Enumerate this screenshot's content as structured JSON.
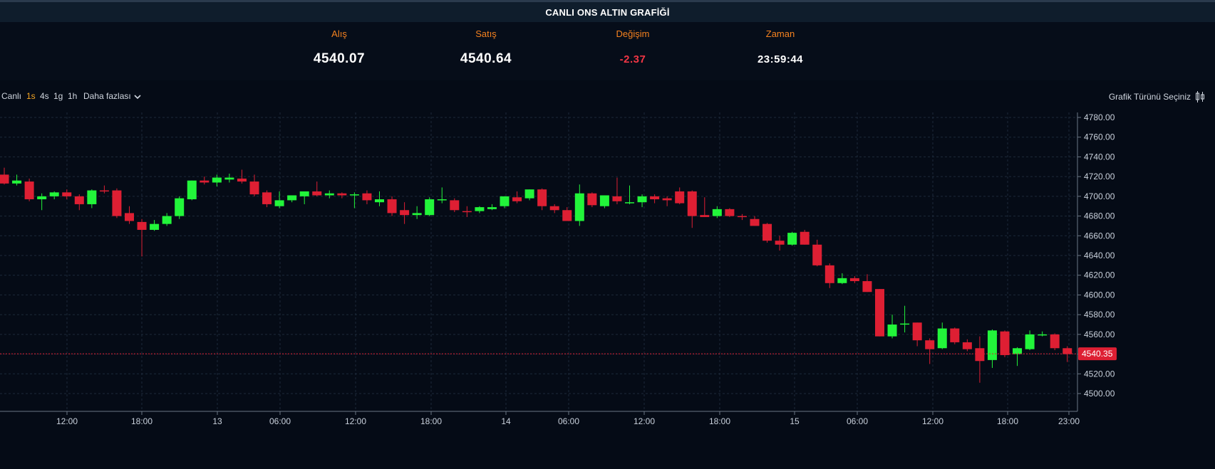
{
  "header": {
    "title": "CANLI ONS ALTIN GRAFİĞİ"
  },
  "stats": {
    "bid_label": "Alış",
    "bid_value": "4540.07",
    "ask_label": "Satış",
    "ask_value": "4540.64",
    "change_label": "Değişim",
    "change_value": "-2.37",
    "time_label": "Zaman",
    "time_value": "23:59:44"
  },
  "toolbar": {
    "live_label": "Canlı",
    "intervals": [
      "1s",
      "4s",
      "1g",
      "1h"
    ],
    "active_interval": "1s",
    "more_label": "Daha fazlası",
    "chart_type_label": "Grafik Türünü Seçiniz"
  },
  "colors": {
    "up": "#22f53a",
    "down": "#de1f33",
    "accent": "#f5821f",
    "background": "#050b16"
  },
  "chart_data": {
    "type": "candlestick",
    "interval_hours": 2,
    "x_start": "12 08:00",
    "y_ticks": [
      4500,
      4520,
      4540,
      4560,
      4580,
      4600,
      4620,
      4640,
      4660,
      4680,
      4700,
      4720,
      4740,
      4760,
      4780
    ],
    "y_tick_labels": [
      "4500.00",
      "4520.00",
      "4540.00",
      "4560.00",
      "4580.00",
      "4600.00",
      "4620.00",
      "4640.00",
      "4660.00",
      "4680.00",
      "4700.00",
      "4720.00",
      "4740.00",
      "4760.00",
      "4780.00"
    ],
    "ylim": [
      4484,
      4791
    ],
    "x_tick_labels": [
      "12:00",
      "18:00",
      "13",
      "06:00",
      "12:00",
      "18:00",
      "14",
      "06:00",
      "12:00",
      "18:00",
      "15",
      "06:00",
      "12:00",
      "18:00",
      "23:00"
    ],
    "current_price": 4540.35,
    "current_price_label": "4540.35",
    "candles": [
      {
        "o": 4722,
        "h": 4729,
        "l": 4712,
        "c": 4713
      },
      {
        "o": 4713,
        "h": 4722,
        "l": 4711,
        "c": 4716
      },
      {
        "o": 4715,
        "h": 4718,
        "l": 4695,
        "c": 4697
      },
      {
        "o": 4697,
        "h": 4703,
        "l": 4686,
        "c": 4700
      },
      {
        "o": 4700,
        "h": 4705,
        "l": 4697,
        "c": 4704
      },
      {
        "o": 4704,
        "h": 4707,
        "l": 4697,
        "c": 4700
      },
      {
        "o": 4700,
        "h": 4702,
        "l": 4686,
        "c": 4692
      },
      {
        "o": 4692,
        "h": 4707,
        "l": 4688,
        "c": 4706
      },
      {
        "o": 4706,
        "h": 4711,
        "l": 4703,
        "c": 4705
      },
      {
        "o": 4706,
        "h": 4708,
        "l": 4678,
        "c": 4680
      },
      {
        "o": 4683,
        "h": 4690,
        "l": 4672,
        "c": 4675
      },
      {
        "o": 4674,
        "h": 4677,
        "l": 4639,
        "c": 4666
      },
      {
        "o": 4666,
        "h": 4676,
        "l": 4665,
        "c": 4672
      },
      {
        "o": 4672,
        "h": 4683,
        "l": 4670,
        "c": 4680
      },
      {
        "o": 4680,
        "h": 4700,
        "l": 4677,
        "c": 4698
      },
      {
        "o": 4697,
        "h": 4716,
        "l": 4696,
        "c": 4716
      },
      {
        "o": 4716,
        "h": 4720,
        "l": 4712,
        "c": 4714
      },
      {
        "o": 4714,
        "h": 4722,
        "l": 4710,
        "c": 4719
      },
      {
        "o": 4717,
        "h": 4723,
        "l": 4714,
        "c": 4719
      },
      {
        "o": 4718,
        "h": 4727,
        "l": 4713,
        "c": 4715
      },
      {
        "o": 4715,
        "h": 4722,
        "l": 4700,
        "c": 4702
      },
      {
        "o": 4704,
        "h": 4706,
        "l": 4689,
        "c": 4692
      },
      {
        "o": 4690,
        "h": 4705,
        "l": 4688,
        "c": 4696
      },
      {
        "o": 4696,
        "h": 4701,
        "l": 4694,
        "c": 4701
      },
      {
        "o": 4700,
        "h": 4702,
        "l": 4692,
        "c": 4705
      },
      {
        "o": 4705,
        "h": 4715,
        "l": 4700,
        "c": 4701
      },
      {
        "o": 4701,
        "h": 4706,
        "l": 4698,
        "c": 4703
      },
      {
        "o": 4703,
        "h": 4704,
        "l": 4698,
        "c": 4701
      },
      {
        "o": 4702,
        "h": 4704,
        "l": 4688,
        "c": 4702
      },
      {
        "o": 4703,
        "h": 4706,
        "l": 4692,
        "c": 4696
      },
      {
        "o": 4694,
        "h": 4705,
        "l": 4690,
        "c": 4697
      },
      {
        "o": 4697,
        "h": 4700,
        "l": 4680,
        "c": 4683
      },
      {
        "o": 4686,
        "h": 4694,
        "l": 4672,
        "c": 4681
      },
      {
        "o": 4681,
        "h": 4690,
        "l": 4677,
        "c": 4683
      },
      {
        "o": 4681,
        "h": 4699,
        "l": 4680,
        "c": 4697
      },
      {
        "o": 4697,
        "h": 4709,
        "l": 4693,
        "c": 4697
      },
      {
        "o": 4696,
        "h": 4698,
        "l": 4684,
        "c": 4686
      },
      {
        "o": 4685,
        "h": 4690,
        "l": 4679,
        "c": 4684
      },
      {
        "o": 4685,
        "h": 4690,
        "l": 4683,
        "c": 4689
      },
      {
        "o": 4687,
        "h": 4692,
        "l": 4686,
        "c": 4689
      },
      {
        "o": 4690,
        "h": 4700,
        "l": 4688,
        "c": 4700
      },
      {
        "o": 4699,
        "h": 4705,
        "l": 4693,
        "c": 4695
      },
      {
        "o": 4698,
        "h": 4707,
        "l": 4696,
        "c": 4707
      },
      {
        "o": 4707,
        "h": 4708,
        "l": 4686,
        "c": 4690
      },
      {
        "o": 4690,
        "h": 4692,
        "l": 4683,
        "c": 4686
      },
      {
        "o": 4686,
        "h": 4689,
        "l": 4675,
        "c": 4675
      },
      {
        "o": 4675,
        "h": 4712,
        "l": 4670,
        "c": 4703
      },
      {
        "o": 4703,
        "h": 4704,
        "l": 4689,
        "c": 4691
      },
      {
        "o": 4690,
        "h": 4701,
        "l": 4688,
        "c": 4701
      },
      {
        "o": 4700,
        "h": 4719,
        "l": 4692,
        "c": 4695
      },
      {
        "o": 4694,
        "h": 4711,
        "l": 4692,
        "c": 4694
      },
      {
        "o": 4694,
        "h": 4702,
        "l": 4689,
        "c": 4700
      },
      {
        "o": 4700,
        "h": 4702,
        "l": 4693,
        "c": 4697
      },
      {
        "o": 4698,
        "h": 4700,
        "l": 4690,
        "c": 4696
      },
      {
        "o": 4705,
        "h": 4709,
        "l": 4692,
        "c": 4693
      },
      {
        "o": 4705,
        "h": 4706,
        "l": 4668,
        "c": 4680
      },
      {
        "o": 4681,
        "h": 4699,
        "l": 4679,
        "c": 4679
      },
      {
        "o": 4680,
        "h": 4690,
        "l": 4678,
        "c": 4687
      },
      {
        "o": 4687,
        "h": 4688,
        "l": 4679,
        "c": 4680
      },
      {
        "o": 4680,
        "h": 4682,
        "l": 4676,
        "c": 4679
      },
      {
        "o": 4677,
        "h": 4680,
        "l": 4670,
        "c": 4670
      },
      {
        "o": 4672,
        "h": 4673,
        "l": 4653,
        "c": 4655
      },
      {
        "o": 4655,
        "h": 4660,
        "l": 4645,
        "c": 4651
      },
      {
        "o": 4651,
        "h": 4664,
        "l": 4650,
        "c": 4663
      },
      {
        "o": 4664,
        "h": 4666,
        "l": 4651,
        "c": 4651
      },
      {
        "o": 4651,
        "h": 4656,
        "l": 4629,
        "c": 4630
      },
      {
        "o": 4630,
        "h": 4632,
        "l": 4607,
        "c": 4612
      },
      {
        "o": 4612,
        "h": 4622,
        "l": 4611,
        "c": 4617
      },
      {
        "o": 4617,
        "h": 4619,
        "l": 4612,
        "c": 4614
      },
      {
        "o": 4614,
        "h": 4621,
        "l": 4603,
        "c": 4603
      },
      {
        "o": 4606,
        "h": 4606,
        "l": 4558,
        "c": 4558
      },
      {
        "o": 4558,
        "h": 4580,
        "l": 4556,
        "c": 4570
      },
      {
        "o": 4570,
        "h": 4589,
        "l": 4562,
        "c": 4571
      },
      {
        "o": 4572,
        "h": 4572,
        "l": 4548,
        "c": 4554
      },
      {
        "o": 4554,
        "h": 4556,
        "l": 4530,
        "c": 4545
      },
      {
        "o": 4546,
        "h": 4572,
        "l": 4545,
        "c": 4566
      },
      {
        "o": 4566,
        "h": 4567,
        "l": 4550,
        "c": 4552
      },
      {
        "o": 4552,
        "h": 4555,
        "l": 4543,
        "c": 4545
      },
      {
        "o": 4546,
        "h": 4558,
        "l": 4511,
        "c": 4533
      },
      {
        "o": 4534,
        "h": 4565,
        "l": 4526,
        "c": 4564
      },
      {
        "o": 4563,
        "h": 4564,
        "l": 4537,
        "c": 4539
      },
      {
        "o": 4540,
        "h": 4547,
        "l": 4528,
        "c": 4546
      },
      {
        "o": 4545,
        "h": 4564,
        "l": 4544,
        "c": 4560
      },
      {
        "o": 4560,
        "h": 4563,
        "l": 4558,
        "c": 4560
      },
      {
        "o": 4560,
        "h": 4561,
        "l": 4544,
        "c": 4546
      },
      {
        "o": 4546,
        "h": 4548,
        "l": 4532,
        "c": 4540
      }
    ]
  }
}
